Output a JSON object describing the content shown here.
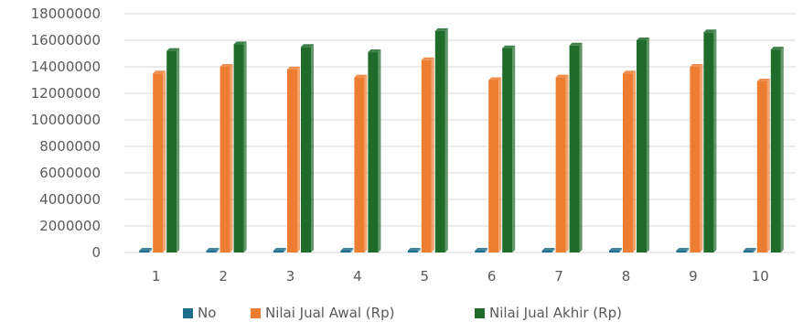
{
  "chart_data": {
    "type": "bar",
    "title": "",
    "xlabel": "",
    "ylabel": "",
    "categories": [
      "1",
      "2",
      "3",
      "4",
      "5",
      "6",
      "7",
      "8",
      "9",
      "10"
    ],
    "ylim": [
      0,
      18000000
    ],
    "yticks": [
      0,
      2000000,
      4000000,
      6000000,
      8000000,
      10000000,
      12000000,
      14000000,
      16000000,
      18000000
    ],
    "grid": true,
    "legend_position": "bottom",
    "series": [
      {
        "name": "No",
        "color": "#1f6e8c",
        "values": [
          1,
          2,
          3,
          4,
          5,
          6,
          7,
          8,
          9,
          10
        ]
      },
      {
        "name": "Nilai Jual Awal (Rp)",
        "color": "#ed7d31",
        "values": [
          13500000,
          14000000,
          13800000,
          13200000,
          14500000,
          13000000,
          13200000,
          13500000,
          14000000,
          12900000
        ]
      },
      {
        "name": "Nilai Jual Akhir (Rp)",
        "color": "#1e6b2a",
        "values": [
          15200000,
          15700000,
          15500000,
          15100000,
          16700000,
          15400000,
          15600000,
          16000000,
          16600000,
          15300000
        ]
      }
    ]
  }
}
